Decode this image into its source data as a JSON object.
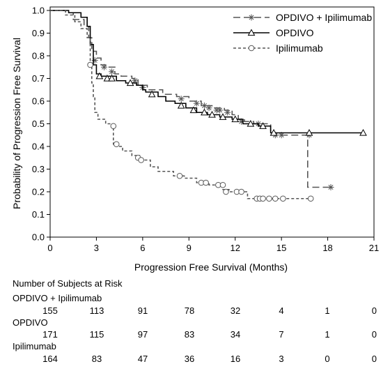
{
  "chart_data": {
    "type": "line",
    "xlabel": "Progression Free Survival (Months)",
    "ylabel": "Probability of Progression Free Survival",
    "xlim": [
      0,
      21
    ],
    "ylim": [
      0,
      1.0
    ],
    "x_ticks": [
      0,
      3,
      6,
      9,
      12,
      15,
      18,
      21
    ],
    "y_ticks": [
      0.0,
      0.1,
      0.2,
      0.3,
      0.4,
      0.5,
      0.6,
      0.7,
      0.8,
      0.9,
      1.0
    ],
    "grid": false,
    "legend_position": "top-right",
    "series": [
      {
        "name": "OPDIVO + Ipilimumab",
        "line_style": "long-dash",
        "marker": "asterisk",
        "points": [
          [
            0,
            1.0
          ],
          [
            1.0,
            0.99
          ],
          [
            1.5,
            0.96
          ],
          [
            2.2,
            0.93
          ],
          [
            2.5,
            0.88
          ],
          [
            2.7,
            0.82
          ],
          [
            3.0,
            0.79
          ],
          [
            3.3,
            0.76
          ],
          [
            3.6,
            0.75
          ],
          [
            4.2,
            0.72
          ],
          [
            4.6,
            0.71
          ],
          [
            5.3,
            0.7
          ],
          [
            5.7,
            0.67
          ],
          [
            6.3,
            0.65
          ],
          [
            7.3,
            0.63
          ],
          [
            8.2,
            0.62
          ],
          [
            9.0,
            0.6
          ],
          [
            9.8,
            0.58
          ],
          [
            10.5,
            0.57
          ],
          [
            11.3,
            0.56
          ],
          [
            11.8,
            0.54
          ],
          [
            12.2,
            0.52
          ],
          [
            12.6,
            0.51
          ],
          [
            13.2,
            0.5
          ],
          [
            14.3,
            0.45
          ],
          [
            14.8,
            0.45
          ],
          [
            16.0,
            0.45
          ],
          [
            16.7,
            0.45
          ],
          [
            16.7,
            0.22
          ],
          [
            18.2,
            0.22
          ]
        ],
        "censored": [
          [
            2.9,
            0.78
          ],
          [
            3.5,
            0.75
          ],
          [
            4.0,
            0.73
          ],
          [
            5.5,
            0.69
          ],
          [
            6.0,
            0.66
          ],
          [
            8.5,
            0.61
          ],
          [
            9.5,
            0.59
          ],
          [
            10.0,
            0.58
          ],
          [
            10.3,
            0.57
          ],
          [
            10.8,
            0.56
          ],
          [
            11.0,
            0.56
          ],
          [
            11.5,
            0.55
          ],
          [
            12.4,
            0.51
          ],
          [
            13.5,
            0.5
          ],
          [
            14.6,
            0.45
          ],
          [
            15.0,
            0.45
          ],
          [
            16.8,
            0.45
          ],
          [
            18.2,
            0.22
          ]
        ]
      },
      {
        "name": "OPDIVO",
        "line_style": "solid",
        "marker": "triangle",
        "points": [
          [
            0,
            1.0
          ],
          [
            1.2,
            0.99
          ],
          [
            2.0,
            0.97
          ],
          [
            2.4,
            0.93
          ],
          [
            2.6,
            0.85
          ],
          [
            2.8,
            0.76
          ],
          [
            3.0,
            0.72
          ],
          [
            3.3,
            0.71
          ],
          [
            4.3,
            0.69
          ],
          [
            4.9,
            0.68
          ],
          [
            5.6,
            0.67
          ],
          [
            6.0,
            0.65
          ],
          [
            6.2,
            0.64
          ],
          [
            7.0,
            0.62
          ],
          [
            7.5,
            0.6
          ],
          [
            8.1,
            0.59
          ],
          [
            8.8,
            0.57
          ],
          [
            9.5,
            0.55
          ],
          [
            10.2,
            0.54
          ],
          [
            11.0,
            0.53
          ],
          [
            11.8,
            0.52
          ],
          [
            12.5,
            0.5
          ],
          [
            13.5,
            0.49
          ],
          [
            14.3,
            0.46
          ],
          [
            16.0,
            0.46
          ],
          [
            20.3,
            0.46
          ]
        ],
        "censored": [
          [
            3.2,
            0.71
          ],
          [
            3.7,
            0.7
          ],
          [
            4.0,
            0.7
          ],
          [
            5.2,
            0.68
          ],
          [
            6.6,
            0.63
          ],
          [
            8.5,
            0.58
          ],
          [
            9.3,
            0.56
          ],
          [
            10.0,
            0.55
          ],
          [
            10.5,
            0.54
          ],
          [
            11.2,
            0.53
          ],
          [
            12.0,
            0.52
          ],
          [
            13.0,
            0.5
          ],
          [
            13.8,
            0.49
          ],
          [
            14.5,
            0.46
          ],
          [
            16.8,
            0.46
          ],
          [
            20.3,
            0.46
          ]
        ]
      },
      {
        "name": "Ipilimumab",
        "line_style": "short-dash",
        "marker": "circle",
        "points": [
          [
            0,
            1.0
          ],
          [
            1.0,
            0.98
          ],
          [
            1.6,
            0.95
          ],
          [
            2.0,
            0.92
          ],
          [
            2.4,
            0.88
          ],
          [
            2.6,
            0.76
          ],
          [
            2.7,
            0.68
          ],
          [
            2.8,
            0.62
          ],
          [
            2.9,
            0.55
          ],
          [
            3.1,
            0.52
          ],
          [
            3.6,
            0.5
          ],
          [
            4.0,
            0.49
          ],
          [
            4.1,
            0.41
          ],
          [
            4.3,
            0.4
          ],
          [
            4.7,
            0.38
          ],
          [
            5.3,
            0.36
          ],
          [
            5.8,
            0.34
          ],
          [
            6.5,
            0.31
          ],
          [
            7.0,
            0.29
          ],
          [
            8.0,
            0.27
          ],
          [
            8.7,
            0.26
          ],
          [
            9.5,
            0.24
          ],
          [
            10.3,
            0.23
          ],
          [
            11.2,
            0.21
          ],
          [
            11.6,
            0.2
          ],
          [
            12.5,
            0.2
          ],
          [
            12.8,
            0.17
          ],
          [
            16.9,
            0.17
          ]
        ],
        "censored": [
          [
            2.6,
            0.76
          ],
          [
            4.1,
            0.49
          ],
          [
            4.3,
            0.41
          ],
          [
            5.7,
            0.35
          ],
          [
            5.9,
            0.34
          ],
          [
            8.4,
            0.27
          ],
          [
            9.8,
            0.24
          ],
          [
            10.1,
            0.24
          ],
          [
            10.9,
            0.23
          ],
          [
            11.2,
            0.23
          ],
          [
            11.4,
            0.2
          ],
          [
            12.1,
            0.2
          ],
          [
            12.4,
            0.2
          ],
          [
            13.4,
            0.17
          ],
          [
            13.6,
            0.17
          ],
          [
            13.8,
            0.17
          ],
          [
            14.2,
            0.17
          ],
          [
            14.6,
            0.17
          ],
          [
            15.1,
            0.17
          ],
          [
            16.9,
            0.17
          ]
        ]
      }
    ],
    "risk_table": {
      "title": "Number of Subjects at Risk",
      "rows": [
        {
          "label": "OPDIVO + Ipilimumab",
          "values": [
            "155",
            "113",
            "91",
            "78",
            "32",
            "4",
            "1",
            "0"
          ]
        },
        {
          "label": "OPDIVO",
          "values": [
            "171",
            "115",
            "97",
            "83",
            "34",
            "7",
            "1",
            "0"
          ]
        },
        {
          "label": "Ipilimumab",
          "values": [
            "164",
            "83",
            "47",
            "36",
            "16",
            "3",
            "0",
            "0"
          ]
        }
      ]
    }
  }
}
